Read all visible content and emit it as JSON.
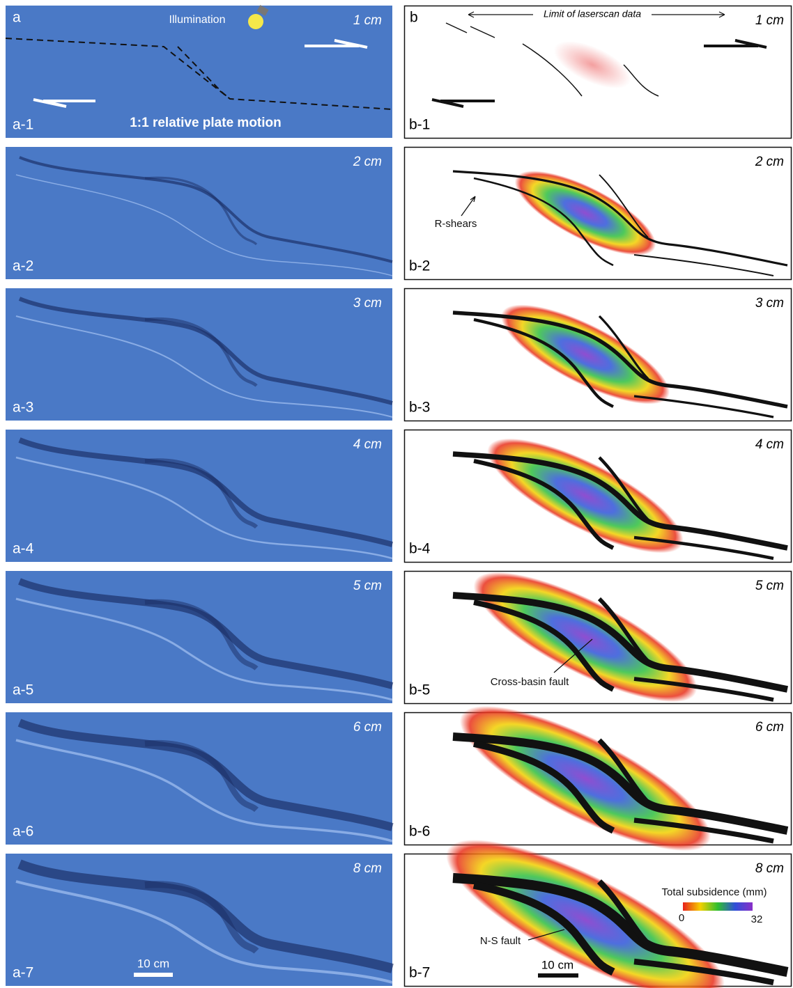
{
  "panels_a": [
    {
      "label": "a-1",
      "displacement": "1 cm"
    },
    {
      "label": "a-2",
      "displacement": "2 cm"
    },
    {
      "label": "a-3",
      "displacement": "3 cm"
    },
    {
      "label": "a-4",
      "displacement": "4 cm"
    },
    {
      "label": "a-5",
      "displacement": "5 cm"
    },
    {
      "label": "a-6",
      "displacement": "6 cm"
    },
    {
      "label": "a-7",
      "displacement": "8 cm"
    }
  ],
  "panels_b": [
    {
      "label": "b-1",
      "displacement": "1 cm"
    },
    {
      "label": "b-2",
      "displacement": "2 cm"
    },
    {
      "label": "b-3",
      "displacement": "3 cm"
    },
    {
      "label": "b-4",
      "displacement": "4 cm"
    },
    {
      "label": "b-5",
      "displacement": "5 cm"
    },
    {
      "label": "b-6",
      "displacement": "6 cm"
    },
    {
      "label": "b-7",
      "displacement": "8 cm"
    }
  ],
  "column_a": {
    "letter": "a",
    "illumination": "Illumination",
    "motion": "1:1 relative plate motion",
    "scale_bar": "10 cm"
  },
  "column_b": {
    "letter": "b",
    "limit": "Limit of laserscan data",
    "r_shears": "R-shears",
    "cross_basin_fault": "Cross-basin fault",
    "ns_fault": "N-S fault",
    "scale_bar": "10 cm",
    "colorbar": {
      "title": "Total subsidence (mm)",
      "min": 0,
      "max": 32
    }
  }
}
